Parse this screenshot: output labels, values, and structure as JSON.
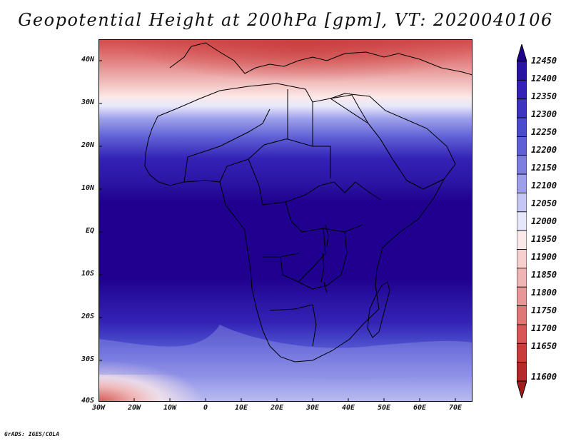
{
  "title": "Geopotential Height at 200hPa [gpm], VT: 2020040106",
  "credit": "GrADS: IGES/COLA",
  "lat_labels": [
    "40N",
    "30N",
    "20N",
    "10N",
    "EQ",
    "10S",
    "20S",
    "30S",
    "40S"
  ],
  "lon_labels": [
    "30W",
    "20W",
    "10W",
    "0",
    "10E",
    "20E",
    "30E",
    "40E",
    "50E",
    "60E",
    "70E"
  ],
  "colorbar": {
    "labels": [
      "12450",
      "12400",
      "12350",
      "12300",
      "12250",
      "12200",
      "12150",
      "12100",
      "12050",
      "12000",
      "11950",
      "11900",
      "11850",
      "11800",
      "11750",
      "11700",
      "11650",
      "11600"
    ],
    "colors": [
      "#20008f",
      "#2a14a2",
      "#3322b5",
      "#3d34c0",
      "#4b4ccc",
      "#5f60d6",
      "#7c7ee0",
      "#9d9fea",
      "#c4c6f4",
      "#e6e7fa",
      "#fbe9e9",
      "#f6cfcf",
      "#efb4b4",
      "#e89797",
      "#e07777",
      "#d55757",
      "#c83c3c",
      "#b42929",
      "#a21c1c"
    ]
  }
}
